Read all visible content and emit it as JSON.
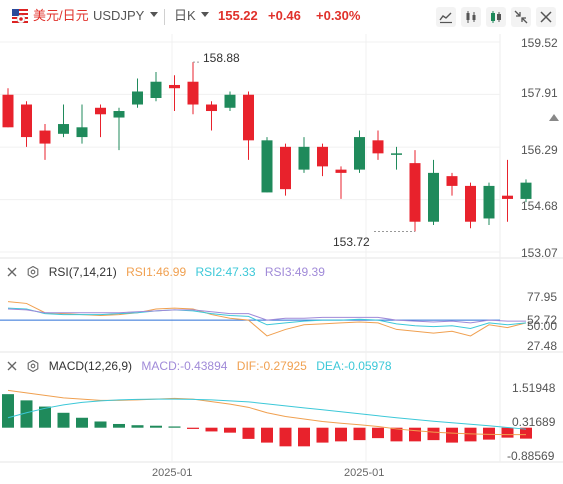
{
  "header": {
    "pair_label": "美元/日元",
    "ticker": "USDJPY",
    "period": "日K",
    "price": "155.22",
    "change": "+0.46",
    "change_pct": "+0.30%"
  },
  "toolbar": {
    "icons": [
      "line-chart-icon",
      "candlestick-icon",
      "color-scheme-icon",
      "collapse-icon",
      "close-icon"
    ]
  },
  "colors": {
    "up": "#e8222c",
    "down": "#1f8a5b",
    "rsi1": "#f0a050",
    "rsi2": "#3cc8d8",
    "rsi3": "#a08ad8",
    "dif": "#f0a050",
    "dea": "#3cc8d8"
  },
  "main_axis": {
    "labels": [
      "159.52",
      "157.91",
      "156.29",
      "154.68",
      "153.07"
    ]
  },
  "annotations": {
    "high": "158.88",
    "low": "153.72"
  },
  "rsi": {
    "title": "RSI(7,14,21)",
    "rsi1": "RSI1:46.99",
    "rsi2": "RSI2:47.33",
    "rsi3": "RSI3:49.39",
    "axis": [
      "77.95",
      "52.72",
      "50.00",
      "27.48"
    ]
  },
  "macd": {
    "title": "MACD(12,26,9)",
    "macd": "MACD:-0.43894",
    "dif": "DIF:-0.27925",
    "dea": "DEA:-0.05978",
    "axis": [
      "1.51948",
      "0.31689",
      "-0.88569"
    ]
  },
  "dates": [
    "2025-01",
    "2025-01"
  ],
  "chart_data": [
    {
      "type": "candlestick",
      "ylim": [
        153.07,
        159.52
      ],
      "candles": [
        {
          "o": 157.9,
          "c": 156.9,
          "h": 158.1,
          "l": 156.9
        },
        {
          "o": 157.6,
          "c": 156.6,
          "h": 157.7,
          "l": 156.3
        },
        {
          "o": 156.8,
          "c": 156.4,
          "h": 157.0,
          "l": 155.9
        },
        {
          "o": 156.7,
          "c": 157.0,
          "h": 157.6,
          "l": 156.6
        },
        {
          "o": 156.6,
          "c": 156.9,
          "h": 157.6,
          "l": 156.4
        },
        {
          "o": 157.5,
          "c": 157.3,
          "h": 157.6,
          "l": 156.6
        },
        {
          "o": 157.2,
          "c": 157.4,
          "h": 157.5,
          "l": 156.2
        },
        {
          "o": 157.6,
          "c": 158.0,
          "h": 158.4,
          "l": 157.5
        },
        {
          "o": 157.8,
          "c": 158.3,
          "h": 158.6,
          "l": 157.7
        },
        {
          "o": 158.2,
          "c": 158.1,
          "h": 158.5,
          "l": 157.4
        },
        {
          "o": 158.3,
          "c": 157.6,
          "h": 158.9,
          "l": 157.3
        },
        {
          "o": 157.6,
          "c": 157.4,
          "h": 157.7,
          "l": 156.8
        },
        {
          "o": 157.5,
          "c": 157.9,
          "h": 158.0,
          "l": 157.4
        },
        {
          "o": 157.9,
          "c": 156.5,
          "h": 158.0,
          "l": 155.9
        },
        {
          "o": 154.9,
          "c": 156.5,
          "h": 156.6,
          "l": 154.9
        },
        {
          "o": 156.3,
          "c": 155.0,
          "h": 156.4,
          "l": 154.8
        },
        {
          "o": 155.6,
          "c": 156.3,
          "h": 156.6,
          "l": 155.5
        },
        {
          "o": 156.3,
          "c": 155.7,
          "h": 156.4,
          "l": 155.4
        },
        {
          "o": 155.6,
          "c": 155.5,
          "h": 155.7,
          "l": 154.7
        },
        {
          "o": 155.6,
          "c": 156.6,
          "h": 156.8,
          "l": 155.5
        },
        {
          "o": 156.5,
          "c": 156.1,
          "h": 156.8,
          "l": 155.9
        },
        {
          "o": 156.1,
          "c": 156.1,
          "h": 156.3,
          "l": 155.6
        },
        {
          "o": 155.8,
          "c": 154.0,
          "h": 156.2,
          "l": 153.7
        },
        {
          "o": 154.0,
          "c": 155.5,
          "h": 155.9,
          "l": 153.9
        },
        {
          "o": 155.4,
          "c": 155.1,
          "h": 155.5,
          "l": 154.8
        },
        {
          "o": 155.1,
          "c": 154.0,
          "h": 155.2,
          "l": 153.8
        },
        {
          "o": 154.1,
          "c": 155.1,
          "h": 155.2,
          "l": 153.9
        },
        {
          "o": 154.8,
          "c": 154.7,
          "h": 155.9,
          "l": 154.0
        },
        {
          "o": 154.7,
          "c": 155.2,
          "h": 155.3,
          "l": 154.6
        }
      ]
    },
    {
      "type": "line",
      "ylim": [
        20,
        90
      ],
      "series": [
        {
          "name": "RSI1",
          "values": [
            70,
            68,
            58,
            57,
            56,
            55,
            56,
            58,
            62,
            63,
            62,
            56,
            52,
            50,
            33,
            40,
            45,
            46,
            47,
            48,
            47,
            40,
            38,
            36,
            38,
            33,
            45,
            42,
            47
          ]
        },
        {
          "name": "RSI2",
          "values": [
            63,
            62,
            57,
            56,
            56,
            56,
            57,
            58,
            60,
            61,
            60,
            57,
            55,
            54,
            45,
            47,
            49,
            50,
            50,
            51,
            50,
            46,
            44,
            43,
            44,
            41,
            47,
            45,
            47
          ]
        },
        {
          "name": "RSI3",
          "values": [
            62,
            61,
            58,
            58,
            58,
            58,
            58,
            59,
            60,
            61,
            61,
            59,
            57,
            57,
            50,
            52,
            52,
            53,
            53,
            53,
            53,
            50,
            49,
            48,
            49,
            47,
            50,
            49,
            49
          ]
        }
      ]
    },
    {
      "type": "bar",
      "ylim": [
        -1.3,
        2.0
      ],
      "series": [
        {
          "name": "MACD",
          "values": [
            1.35,
            1.1,
            0.85,
            0.6,
            0.4,
            0.25,
            0.15,
            0.1,
            0.08,
            0.05,
            -0.05,
            -0.15,
            -0.2,
            -0.45,
            -0.6,
            -0.75,
            -0.75,
            -0.6,
            -0.55,
            -0.5,
            -0.42,
            -0.55,
            -0.55,
            -0.5,
            -0.6,
            -0.55,
            -0.48,
            -0.4,
            -0.44
          ]
        },
        {
          "name": "DIF",
          "values": [
            1.5,
            1.4,
            1.3,
            1.2,
            1.15,
            1.1,
            1.1,
            1.12,
            1.15,
            1.18,
            1.15,
            1.05,
            0.95,
            0.82,
            0.6,
            0.45,
            0.35,
            0.25,
            0.18,
            0.12,
            0.05,
            -0.05,
            -0.12,
            -0.18,
            -0.22,
            -0.25,
            -0.27,
            -0.28,
            -0.28
          ]
        },
        {
          "name": "DEA",
          "values": [
            0.4,
            0.6,
            0.78,
            0.92,
            1.02,
            1.08,
            1.12,
            1.14,
            1.15,
            1.15,
            1.14,
            1.12,
            1.08,
            1.04,
            0.96,
            0.88,
            0.8,
            0.72,
            0.64,
            0.56,
            0.48,
            0.4,
            0.33,
            0.26,
            0.2,
            0.14,
            0.08,
            0.01,
            -0.06
          ]
        }
      ]
    }
  ]
}
